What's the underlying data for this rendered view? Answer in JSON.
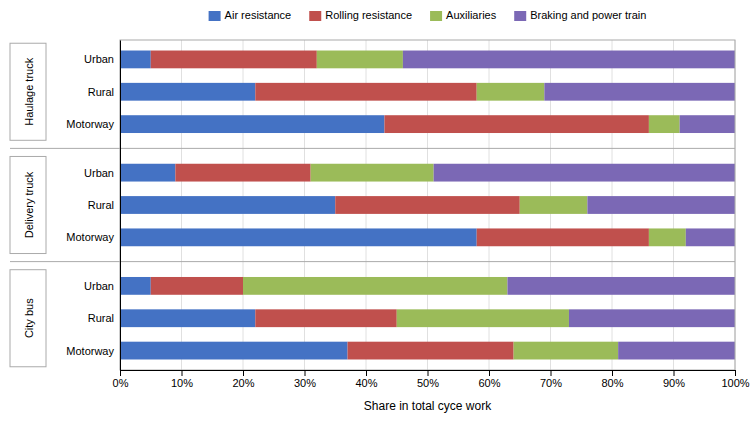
{
  "chart_data": {
    "type": "bar",
    "orientation": "horizontal",
    "stacked": true,
    "categories": [
      "Urban",
      "Rural",
      "Motorway",
      "Urban",
      "Rural",
      "Motorway",
      "Urban",
      "Rural",
      "Motorway"
    ],
    "group_labels": [
      "Haulage truck",
      "Delivery truck",
      "City bus"
    ],
    "series": [
      {
        "name": "Air resistance",
        "color": "#4472c4",
        "values": [
          5,
          22,
          43,
          9,
          35,
          58,
          5,
          22,
          37
        ]
      },
      {
        "name": "Rolling resistance",
        "color": "#c0504d",
        "values": [
          27,
          36,
          43,
          22,
          30,
          28,
          15,
          23,
          27
        ]
      },
      {
        "name": "Auxiliaries",
        "color": "#9bbb59",
        "values": [
          14,
          11,
          5,
          20,
          11,
          6,
          43,
          28,
          17
        ]
      },
      {
        "name": "Braking and power train",
        "color": "#7b68b5",
        "values": [
          54,
          31,
          9,
          49,
          24,
          8,
          37,
          27,
          19
        ]
      }
    ],
    "xlabel": "Share in total cyce work",
    "xlim": [
      0,
      100
    ],
    "xticks": [
      {
        "value": 0,
        "label": "0%"
      },
      {
        "value": 10,
        "label": "10%"
      },
      {
        "value": 20,
        "label": "20%"
      },
      {
        "value": 30,
        "label": "30%"
      },
      {
        "value": 40,
        "label": "40%"
      },
      {
        "value": 50,
        "label": "50%"
      },
      {
        "value": 60,
        "label": "60%"
      },
      {
        "value": 70,
        "label": "70%"
      },
      {
        "value": 80,
        "label": "80%"
      },
      {
        "value": 90,
        "label": "90%"
      },
      {
        "value": 100,
        "label": "100%"
      }
    ],
    "grid": true,
    "legend": "top"
  }
}
